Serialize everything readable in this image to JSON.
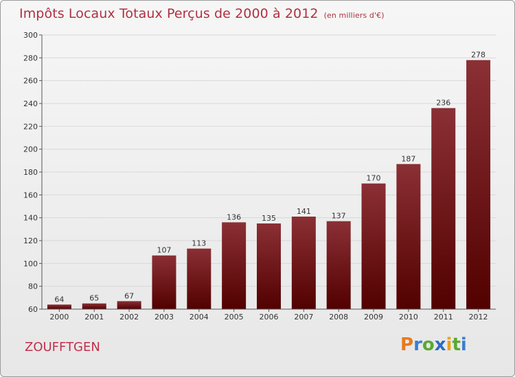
{
  "title": "Impôts Locaux Totaux Perçus de 2000 à 2012",
  "unit_note": "(en milliers d'€)",
  "commune": "ZOUFFTGEN",
  "brand": {
    "p": "P",
    "r": "r",
    "o": "o",
    "x": "x",
    "i1": "i",
    "t": "t",
    "i2": "i"
  },
  "colors": {
    "bar_top": "#8b3035",
    "bar_bottom": "#520000",
    "title": "#b03040"
  },
  "chart_data": {
    "type": "bar",
    "title": "Impôts Locaux Totaux Perçus de 2000 à 2012",
    "xlabel": "",
    "ylabel": "",
    "categories": [
      "2000",
      "2001",
      "2002",
      "2003",
      "2004",
      "2005",
      "2006",
      "2007",
      "2008",
      "2009",
      "2010",
      "2011",
      "2012"
    ],
    "values": [
      64,
      65,
      67,
      107,
      113,
      136,
      135,
      141,
      137,
      170,
      187,
      236,
      278
    ],
    "ylim": [
      60,
      300
    ],
    "yticks": [
      60,
      80,
      100,
      120,
      140,
      160,
      180,
      200,
      220,
      240,
      260,
      280,
      300
    ],
    "grid": true
  }
}
